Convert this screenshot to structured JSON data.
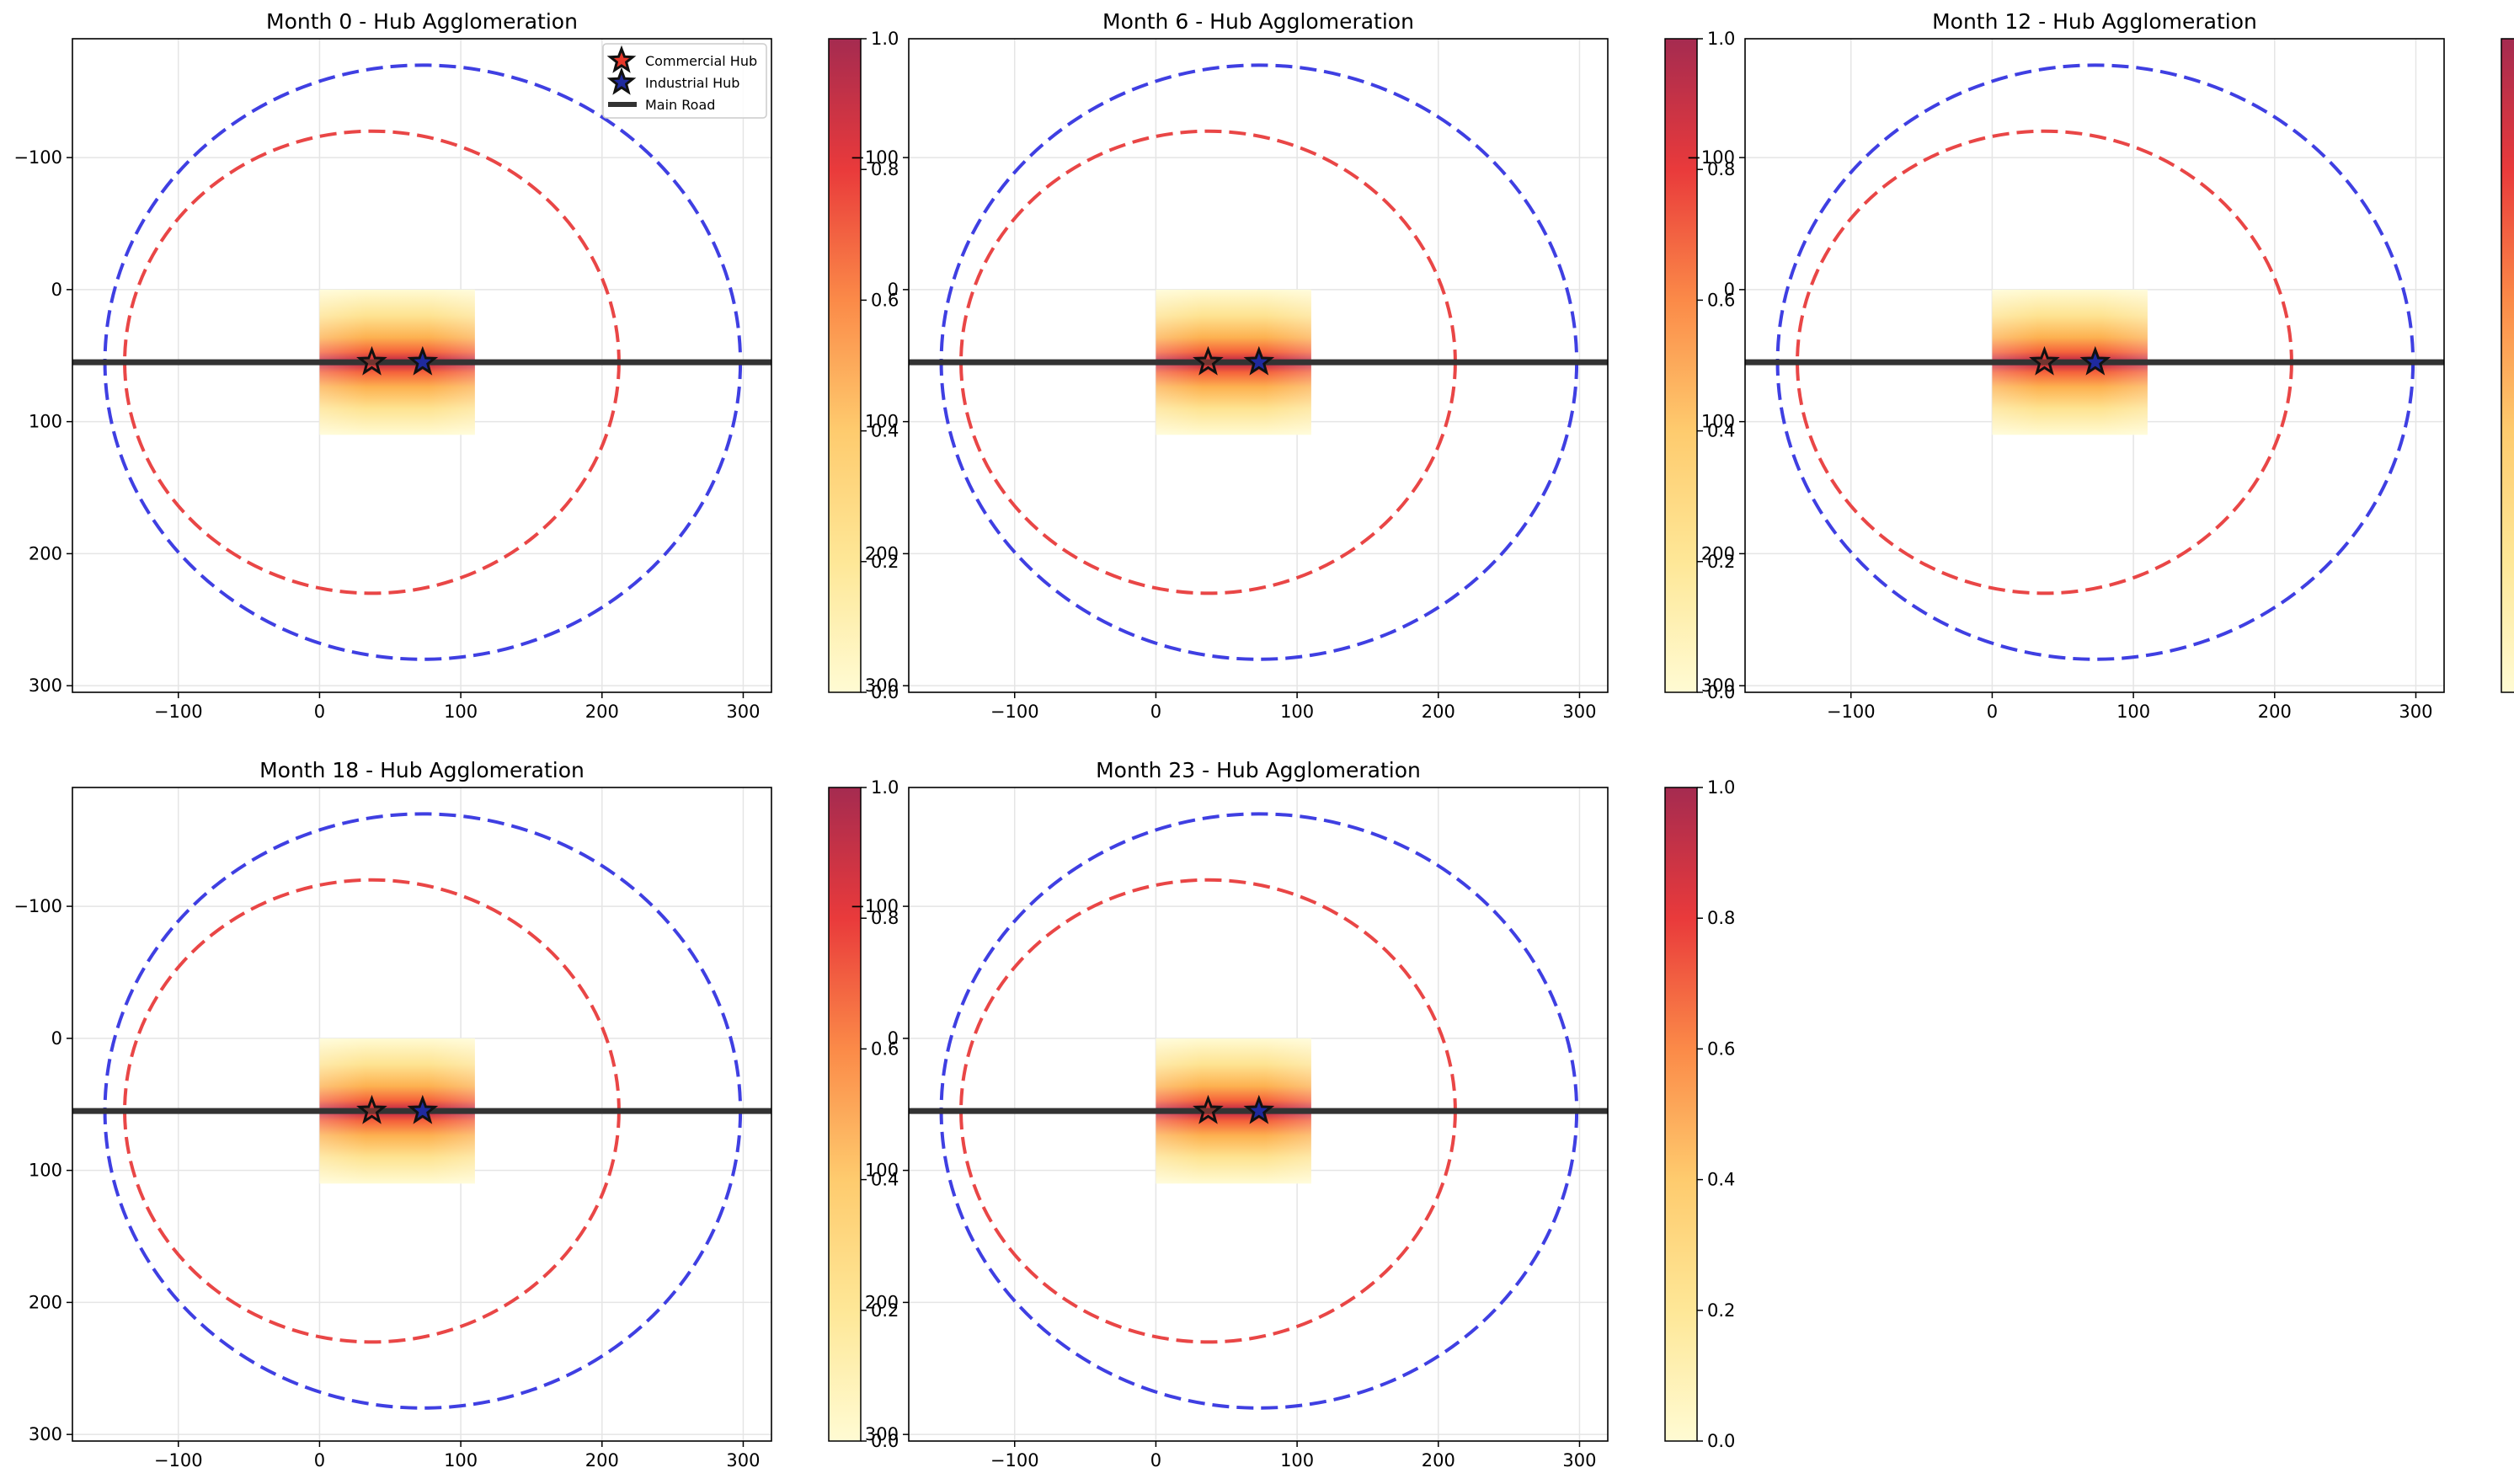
{
  "chart_data": [
    {
      "type": "heatmap",
      "title": "Month 0 - Hub Agglomeration",
      "legend": {
        "position": "top-right",
        "entries": [
          "Commercial Hub",
          "Industrial Hub",
          "Main Road"
        ]
      }
    },
    {
      "type": "heatmap",
      "title": "Month 6 - Hub Agglomeration"
    },
    {
      "type": "heatmap",
      "title": "Month 12 - Hub Agglomeration"
    },
    {
      "type": "heatmap",
      "title": "Month 18 - Hub Agglomeration"
    },
    {
      "type": "heatmap",
      "title": "Month 23 - Hub Agglomeration"
    }
  ],
  "shared": {
    "xlim": [
      -175,
      320
    ],
    "ylim_inverted": [
      305,
      -190
    ],
    "x_ticks": [
      -100,
      0,
      100,
      200,
      300
    ],
    "y_ticks": [
      -100,
      0,
      100,
      200,
      300
    ],
    "grid": true,
    "heatmap": {
      "x_range": [
        0,
        110
      ],
      "y_range": [
        0,
        110
      ],
      "peak_y": 55,
      "value_range": [
        0,
        1
      ],
      "colormap": "YlOrRd"
    },
    "colorbar": {
      "range": [
        0,
        1
      ],
      "ticks": [
        "0.0",
        "0.2",
        "0.4",
        "0.6",
        "0.8",
        "1.0"
      ]
    },
    "commercial_hub": {
      "x": 37,
      "y": 55,
      "color": "#e8392b",
      "influence_radius": 175,
      "ring_color": "#e83c3c"
    },
    "industrial_hub": {
      "x": 73,
      "y": 55,
      "color": "#1f2a9e",
      "influence_radius": 225,
      "ring_color": "#3535e0"
    },
    "main_road": {
      "y": 55,
      "color": "#333333"
    }
  }
}
